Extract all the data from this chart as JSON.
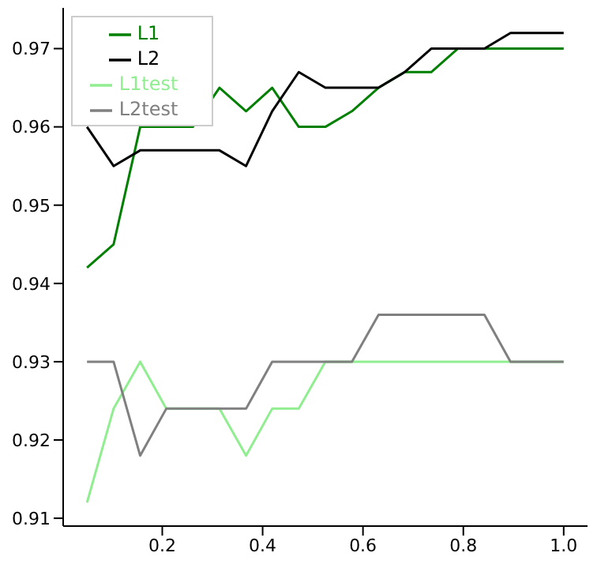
{
  "chart_data": {
    "type": "line",
    "x": [
      0.05,
      0.103,
      0.156,
      0.208,
      0.261,
      0.314,
      0.367,
      0.419,
      0.472,
      0.525,
      0.578,
      0.631,
      0.683,
      0.736,
      0.789,
      0.842,
      0.894,
      0.947,
      1.0
    ],
    "series": [
      {
        "name": "L1",
        "color": "#008000",
        "values": [
          0.942,
          0.945,
          0.96,
          0.96,
          0.96,
          0.965,
          0.962,
          0.965,
          0.96,
          0.96,
          0.962,
          0.965,
          0.967,
          0.967,
          0.97,
          0.97,
          0.97,
          0.97,
          0.97
        ]
      },
      {
        "name": "L2",
        "color": "#000000",
        "values": [
          0.96,
          0.955,
          0.957,
          0.957,
          0.957,
          0.957,
          0.955,
          0.962,
          0.967,
          0.965,
          0.965,
          0.965,
          0.967,
          0.97,
          0.97,
          0.97,
          0.972,
          0.972,
          0.972
        ]
      },
      {
        "name": "L1test",
        "color": "#90ee90",
        "values": [
          0.912,
          0.924,
          0.93,
          0.924,
          0.924,
          0.924,
          0.918,
          0.924,
          0.924,
          0.93,
          0.93,
          0.93,
          0.93,
          0.93,
          0.93,
          0.93,
          0.93,
          0.93,
          0.93
        ]
      },
      {
        "name": "L2test",
        "color": "#808080",
        "values": [
          0.93,
          0.93,
          0.918,
          0.924,
          0.924,
          0.924,
          0.924,
          0.93,
          0.93,
          0.93,
          0.93,
          0.936,
          0.936,
          0.936,
          0.936,
          0.936,
          0.93,
          0.93,
          0.93
        ]
      }
    ],
    "xlim": [
      0.0025,
      1.0475
    ],
    "xticks": [
      0.2,
      0.4,
      0.6,
      0.8,
      {
        "value": 1.0,
        "label": "1.0"
      }
    ],
    "ylim": [
      0.909,
      0.9752
    ],
    "yticks": [
      0.91,
      0.92,
      0.93,
      0.94,
      0.95,
      0.96,
      0.97
    ],
    "grid": false,
    "legend": "top left",
    "marker": "none",
    "line_style": "solid"
  }
}
